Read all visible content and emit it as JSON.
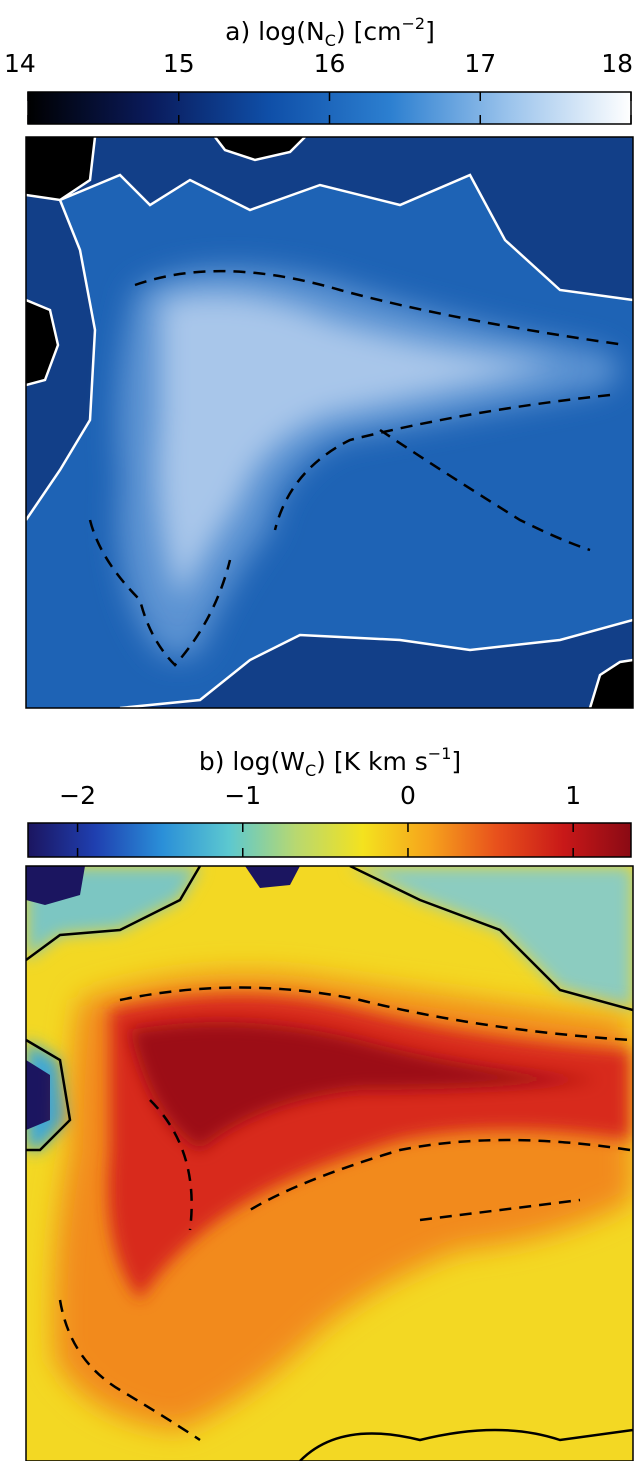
{
  "chart_data": [
    {
      "type": "colorbar",
      "title": [
        "a) log(N",
        "C",
        ")  [cm",
        "−2",
        "]"
      ],
      "xlim": [
        14,
        18
      ],
      "xticks": [
        14,
        15,
        16,
        17,
        18
      ],
      "colormap": [
        "#000000",
        "#0a1a5a",
        "#0f4fa8",
        "#2c7fd0",
        "#9cc4ec",
        "#ffffff"
      ]
    },
    {
      "type": "colorbar",
      "title": [
        "b) log(W",
        "C",
        ") [K km s",
        "−1",
        "]"
      ],
      "xlim": [
        -2.3,
        1.35
      ],
      "xticks": [
        {
          "value": -2,
          "label": "−2"
        },
        {
          "value": -1,
          "label": "−1"
        },
        0,
        1
      ],
      "colormap": [
        "#1b1560",
        "#1f3fb0",
        "#2a8fd8",
        "#5cc8d0",
        "#b8d870",
        "#f4e21e",
        "#f6a21c",
        "#e8501c",
        "#c81818",
        "#8a0a14"
      ]
    }
  ]
}
